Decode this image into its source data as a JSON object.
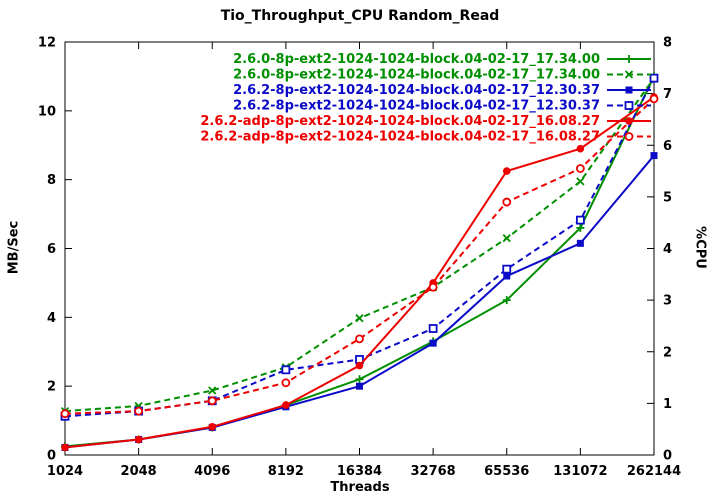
{
  "chart_data": {
    "type": "line",
    "title": "Tio_Throughput_CPU Random_Read",
    "xlabel": "Threads",
    "ylabel": "MB/Sec",
    "y2label": "%CPU",
    "grid": false,
    "legend_position": "top-right-inside",
    "categories": [
      "1024",
      "2048",
      "4096",
      "8192",
      "16384",
      "32768",
      "65536",
      "131072",
      "262144"
    ],
    "left_axis": {
      "min": 0,
      "max": 12,
      "ticks": [
        0,
        2,
        4,
        6,
        8,
        10,
        12
      ]
    },
    "right_axis": {
      "min": 0,
      "max": 8,
      "ticks": [
        0,
        1,
        2,
        3,
        4,
        5,
        6,
        7,
        8
      ]
    },
    "series": [
      {
        "label": "2.6.0-8p-ext2-1024-1024-block.04-02-17_17.34.00",
        "axis": "left",
        "unit": "MB/Sec",
        "color": "#008f00",
        "line_style": "solid",
        "marker": "plus",
        "values": [
          0.25,
          0.45,
          0.8,
          1.45,
          2.2,
          3.3,
          4.5,
          6.6,
          11.0
        ]
      },
      {
        "label": "2.6.0-8p-ext2-1024-1024-block.04-02-17_17.34.00",
        "axis": "right",
        "unit": "%CPU",
        "color": "#008f00",
        "line_style": "dashed",
        "marker": "cross",
        "values": [
          0.85,
          0.95,
          1.25,
          1.7,
          2.65,
          3.25,
          4.2,
          5.3,
          7.3
        ]
      },
      {
        "label": "2.6.2-8p-ext2-1024-1024-block.04-02-17_12.30.37",
        "axis": "left",
        "unit": "MB/Sec",
        "color": "#0a0ac8",
        "line_style": "solid",
        "marker": "square",
        "values": [
          0.22,
          0.45,
          0.8,
          1.4,
          2.0,
          3.25,
          5.2,
          6.15,
          8.7
        ]
      },
      {
        "label": "2.6.2-8p-ext2-1024-1024-block.04-02-17_12.30.37",
        "axis": "right",
        "unit": "%CPU",
        "color": "#0a0ac8",
        "line_style": "dashed",
        "marker": "square-open",
        "values": [
          0.75,
          0.85,
          1.05,
          1.65,
          1.85,
          2.45,
          3.6,
          4.55,
          7.3
        ]
      },
      {
        "label": "2.6.2-adp-8p-ext2-1024-1024-block.04-02-17_16.08.27",
        "axis": "left",
        "unit": "MB/Sec",
        "color": "#ee0000",
        "line_style": "solid",
        "marker": "circle",
        "values": [
          0.22,
          0.45,
          0.82,
          1.45,
          2.6,
          5.0,
          8.25,
          8.9,
          10.4
        ]
      },
      {
        "label": "2.6.2-adp-8p-ext2-1024-1024-block.04-02-17_16.08.27",
        "axis": "right",
        "unit": "%CPU",
        "color": "#ee0000",
        "line_style": "dashed",
        "marker": "circle-open",
        "values": [
          0.8,
          0.85,
          1.05,
          1.4,
          2.25,
          3.25,
          4.9,
          5.55,
          6.9
        ]
      }
    ]
  }
}
